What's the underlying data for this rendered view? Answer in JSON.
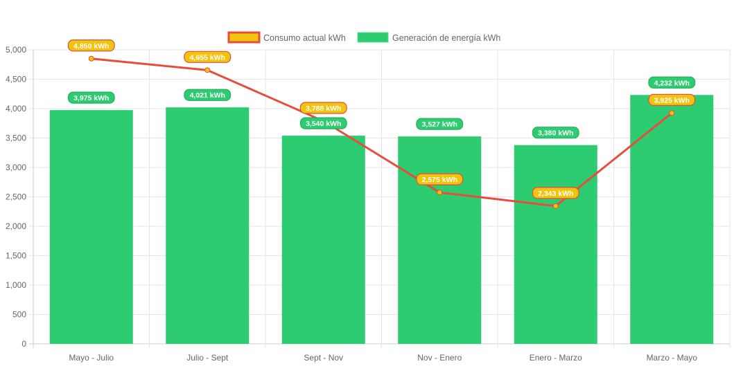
{
  "chart_data": {
    "type": "bar",
    "categories": [
      "Mayo - Julio",
      "Julio - Sept",
      "Sept - Nov",
      "Nov - Enero",
      "Enero - Marzo",
      "Marzo - Mayo"
    ],
    "series": [
      {
        "name": "Consumo actual kWh",
        "type": "line",
        "values": [
          4850,
          4655,
          3788,
          2575,
          2343,
          3925
        ],
        "color": "#e74c3c",
        "fill": "#f1c40f"
      },
      {
        "name": "Generación de energía kWh",
        "type": "bar",
        "values": [
          3975,
          4021,
          3540,
          3527,
          3380,
          4232
        ],
        "color": "#2ecc71"
      }
    ],
    "data_label_unit": "kWh",
    "ylim": [
      0,
      5000
    ],
    "yticks": [
      0,
      500,
      1000,
      1500,
      2000,
      2500,
      3000,
      3500,
      4000,
      4500,
      5000
    ],
    "grid": true,
    "legend": "top"
  }
}
